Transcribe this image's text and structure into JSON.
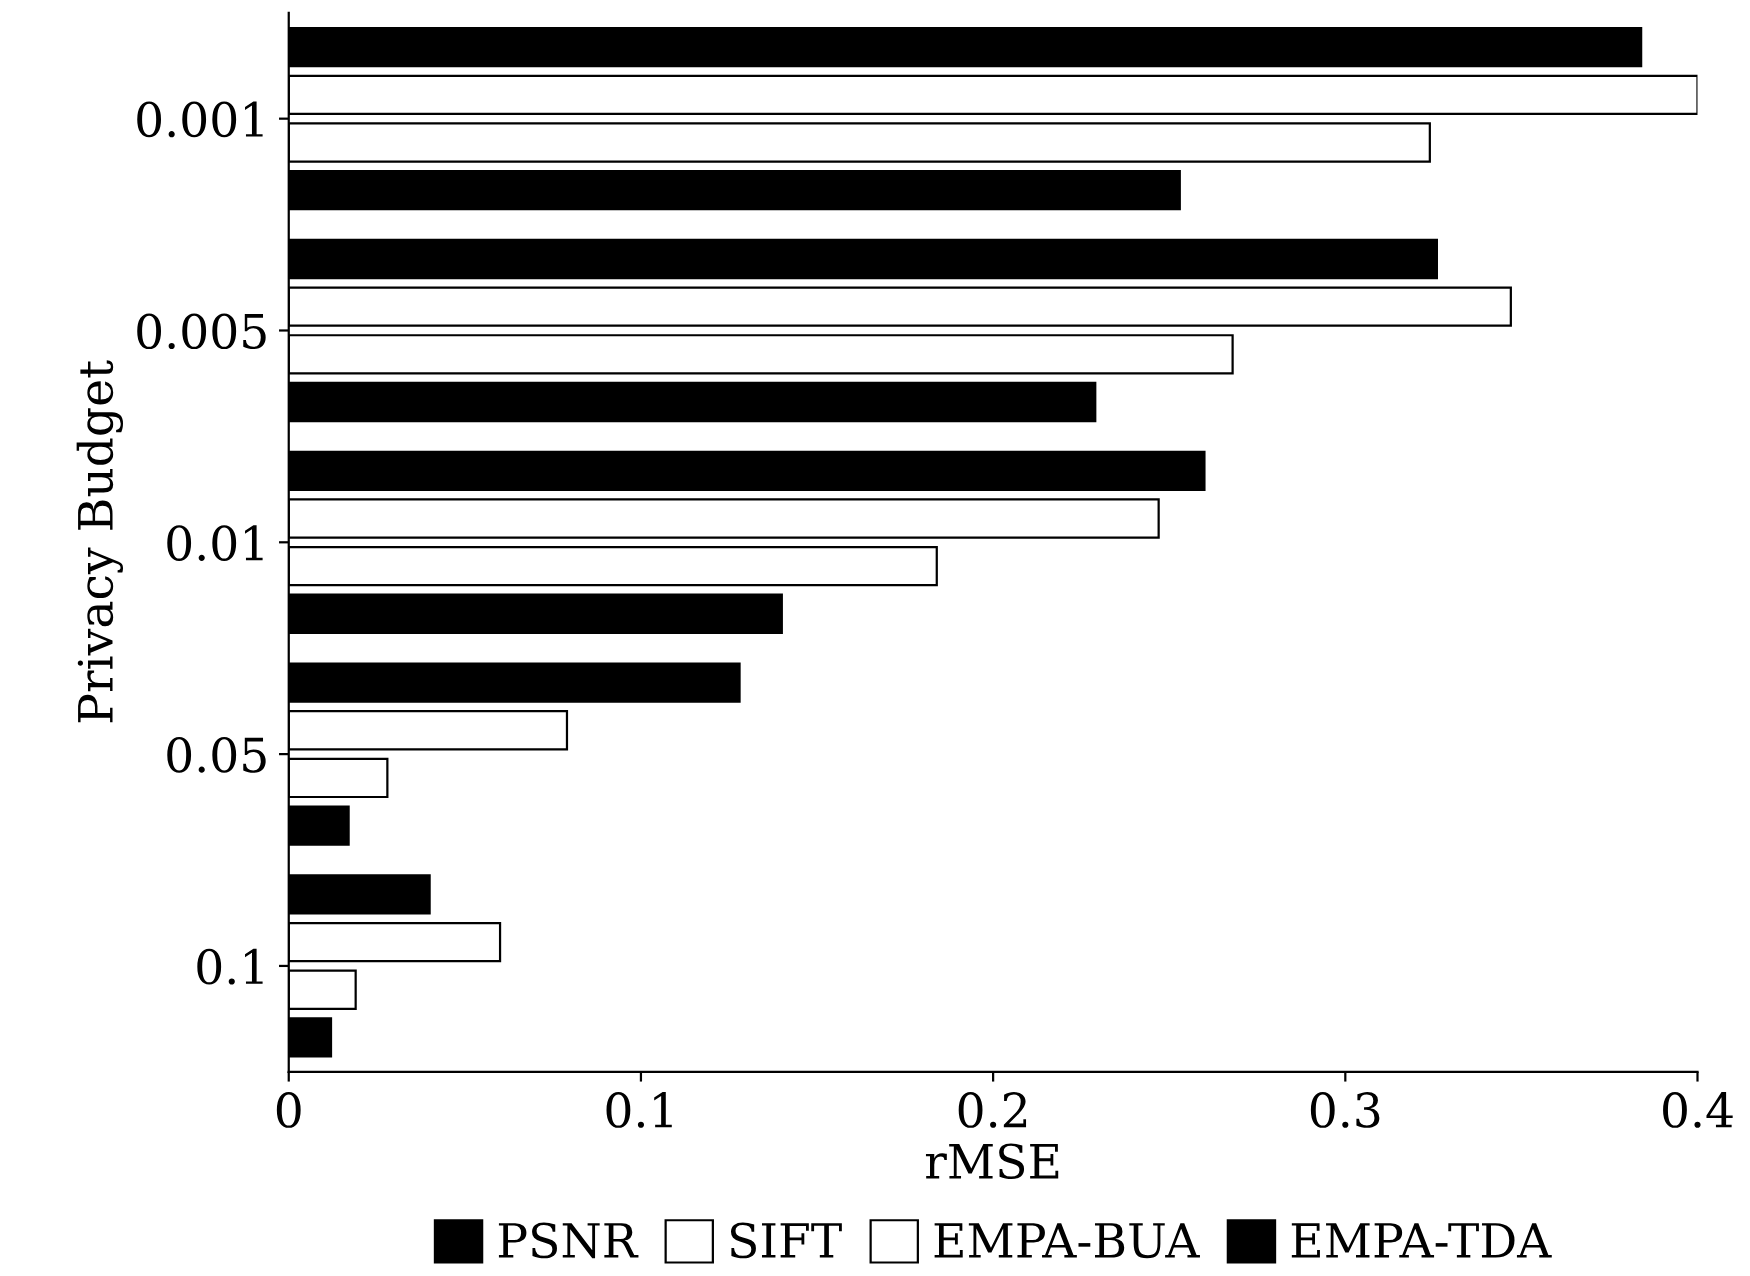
{
  "chart_data": {
    "type": "bar",
    "orientation": "horizontal",
    "xlabel": "rMSE",
    "ylabel": "Privacy Budget",
    "categories": [
      "0.001",
      "0.005",
      "0.01",
      "0.05",
      "0.1"
    ],
    "series": [
      {
        "name": "PSNR",
        "color": "#000000",
        "values": [
          0.384,
          0.326,
          0.26,
          0.128,
          0.04
        ]
      },
      {
        "name": "SIFT",
        "color": "#ffffff",
        "values": [
          0.4,
          0.347,
          0.247,
          0.079,
          0.06
        ]
      },
      {
        "name": "EMPA-BUA",
        "color": "#ffffff",
        "values": [
          0.324,
          0.268,
          0.184,
          0.028,
          0.019
        ]
      },
      {
        "name": "EMPA-TDA",
        "color": "#000000",
        "values": [
          0.253,
          0.229,
          0.14,
          0.017,
          0.012
        ]
      }
    ],
    "xlim": [
      0,
      0.4
    ],
    "xticks": [
      0,
      0.1,
      0.2,
      0.3,
      0.4
    ],
    "grid": false,
    "legend": "bottom"
  }
}
